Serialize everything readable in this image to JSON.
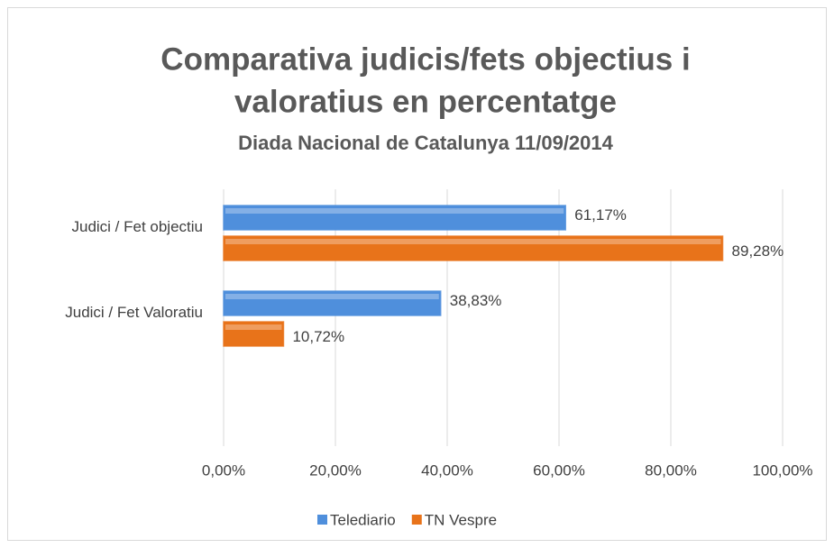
{
  "chart_data": {
    "type": "bar",
    "orientation": "horizontal",
    "title": [
      "Comparativa judicis/fets objectius i",
      "valoratius en percentatge"
    ],
    "subtitle": "Diada Nacional de Catalunya 11/09/2014",
    "categories": [
      "Judici / Fet objectiu",
      "Judici / Fet Valoratiu",
      null
    ],
    "series": [
      {
        "name": "Telediario",
        "color": "#4f8fdc",
        "values": [
          61.17,
          38.83,
          null
        ],
        "value_labels": [
          "61,17%",
          "38,83%",
          null
        ]
      },
      {
        "name": "TN Vespre",
        "color": "#e8731a",
        "values": [
          89.28,
          10.72,
          null
        ],
        "value_labels": [
          "89,28%",
          "10,72%",
          null
        ]
      }
    ],
    "xlim": [
      0,
      100
    ],
    "xticks": [
      {
        "value": 0,
        "label": "0,00%"
      },
      {
        "value": 20,
        "label": "20,00%"
      },
      {
        "value": 40,
        "label": "40,00%"
      },
      {
        "value": 60,
        "label": "60,00%"
      },
      {
        "value": 80,
        "label": "80,00%"
      },
      {
        "value": 100,
        "label": "100,00%"
      }
    ],
    "grid": true,
    "legend": "bottom"
  }
}
